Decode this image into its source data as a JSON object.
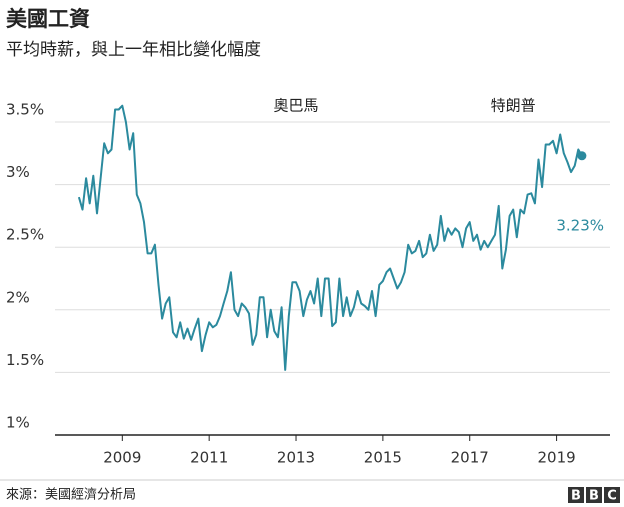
{
  "chart_data": {
    "type": "line",
    "title": "美國工資",
    "subtitle": "平均時薪，與上一年相比變化幅度",
    "source": "來源：美國經濟分析局",
    "logo": [
      "B",
      "B",
      "C"
    ],
    "annotations": [
      {
        "text": "奧巴馬",
        "x": 2013
      },
      {
        "text": "特朗普",
        "x": 2018
      }
    ],
    "end_label": "3.23%",
    "color": "#2b8a9e",
    "xlim": [
      2007.45,
      2020.23
    ],
    "ylim": [
      1,
      3.65
    ],
    "xticks": [
      2009,
      2011,
      2013,
      2015,
      2017,
      2019
    ],
    "yticks": [
      {
        "value": 1,
        "label": "1%"
      },
      {
        "value": 1.5,
        "label": "1.5%"
      },
      {
        "value": 2,
        "label": "2%"
      },
      {
        "value": 2.5,
        "label": "2.5%"
      },
      {
        "value": 3,
        "label": "3%"
      },
      {
        "value": 3.5,
        "label": "3.5%"
      }
    ],
    "grid": true,
    "x": [
      2008,
      2008.083,
      2008.167,
      2008.25,
      2008.333,
      2008.417,
      2008.5,
      2008.583,
      2008.667,
      2008.75,
      2008.833,
      2008.917,
      2009,
      2009.083,
      2009.167,
      2009.25,
      2009.333,
      2009.417,
      2009.5,
      2009.583,
      2009.667,
      2009.75,
      2009.833,
      2009.917,
      2010,
      2010.083,
      2010.167,
      2010.25,
      2010.333,
      2010.417,
      2010.5,
      2010.583,
      2010.667,
      2010.75,
      2010.833,
      2010.917,
      2011,
      2011.083,
      2011.167,
      2011.25,
      2011.333,
      2011.417,
      2011.5,
      2011.583,
      2011.667,
      2011.75,
      2011.833,
      2011.917,
      2012,
      2012.083,
      2012.167,
      2012.25,
      2012.333,
      2012.417,
      2012.5,
      2012.583,
      2012.667,
      2012.75,
      2012.833,
      2012.917,
      2013,
      2013.083,
      2013.167,
      2013.25,
      2013.333,
      2013.417,
      2013.5,
      2013.583,
      2013.667,
      2013.75,
      2013.833,
      2013.917,
      2014,
      2014.083,
      2014.167,
      2014.25,
      2014.333,
      2014.417,
      2014.5,
      2014.583,
      2014.667,
      2014.75,
      2014.833,
      2014.917,
      2015,
      2015.083,
      2015.167,
      2015.25,
      2015.333,
      2015.417,
      2015.5,
      2015.583,
      2015.667,
      2015.75,
      2015.833,
      2015.917,
      2016,
      2016.083,
      2016.167,
      2016.25,
      2016.333,
      2016.417,
      2016.5,
      2016.583,
      2016.667,
      2016.75,
      2016.833,
      2016.917,
      2017,
      2017.083,
      2017.167,
      2017.25,
      2017.333,
      2017.417,
      2017.5,
      2017.583,
      2017.667,
      2017.75,
      2017.833,
      2017.917,
      2018,
      2018.083,
      2018.167,
      2018.25,
      2018.333,
      2018.417,
      2018.5,
      2018.583,
      2018.667,
      2018.75,
      2018.833,
      2018.917,
      2019,
      2019.083,
      2019.167,
      2019.25,
      2019.333,
      2019.417,
      2019.5,
      2019.583
    ],
    "values": [
      2.9,
      2.8,
      3.05,
      2.85,
      3.07,
      2.77,
      3.05,
      3.33,
      3.25,
      3.28,
      3.6,
      3.6,
      3.63,
      3.5,
      3.28,
      3.41,
      2.92,
      2.85,
      2.7,
      2.45,
      2.45,
      2.52,
      2.2,
      1.93,
      2.05,
      2.1,
      1.82,
      1.78,
      1.9,
      1.77,
      1.85,
      1.76,
      1.85,
      1.93,
      1.67,
      1.8,
      1.9,
      1.86,
      1.88,
      1.95,
      2.05,
      2.15,
      2.3,
      2.0,
      1.95,
      2.05,
      2.02,
      1.97,
      1.72,
      1.8,
      2.1,
      2.1,
      1.78,
      2.0,
      1.83,
      1.78,
      2.02,
      1.52,
      1.95,
      2.22,
      2.22,
      2.15,
      1.95,
      2.08,
      2.15,
      2.05,
      2.25,
      1.95,
      2.25,
      2.25,
      1.87,
      1.9,
      2.25,
      1.95,
      2.1,
      1.95,
      2.02,
      2.15,
      2.05,
      2.03,
      2.0,
      2.15,
      1.95,
      2.2,
      2.23,
      2.3,
      2.33,
      2.25,
      2.17,
      2.22,
      2.3,
      2.52,
      2.45,
      2.47,
      2.55,
      2.42,
      2.45,
      2.6,
      2.47,
      2.52,
      2.75,
      2.55,
      2.65,
      2.6,
      2.65,
      2.62,
      2.5,
      2.65,
      2.7,
      2.55,
      2.6,
      2.48,
      2.55,
      2.5,
      2.55,
      2.6,
      2.83,
      2.33,
      2.48,
      2.75,
      2.8,
      2.58,
      2.8,
      2.77,
      2.92,
      2.93,
      2.85,
      3.2,
      2.98,
      3.32,
      3.32,
      3.35,
      3.25,
      3.4,
      3.25,
      3.18,
      3.1,
      3.15,
      3.28,
      3.23
    ]
  }
}
